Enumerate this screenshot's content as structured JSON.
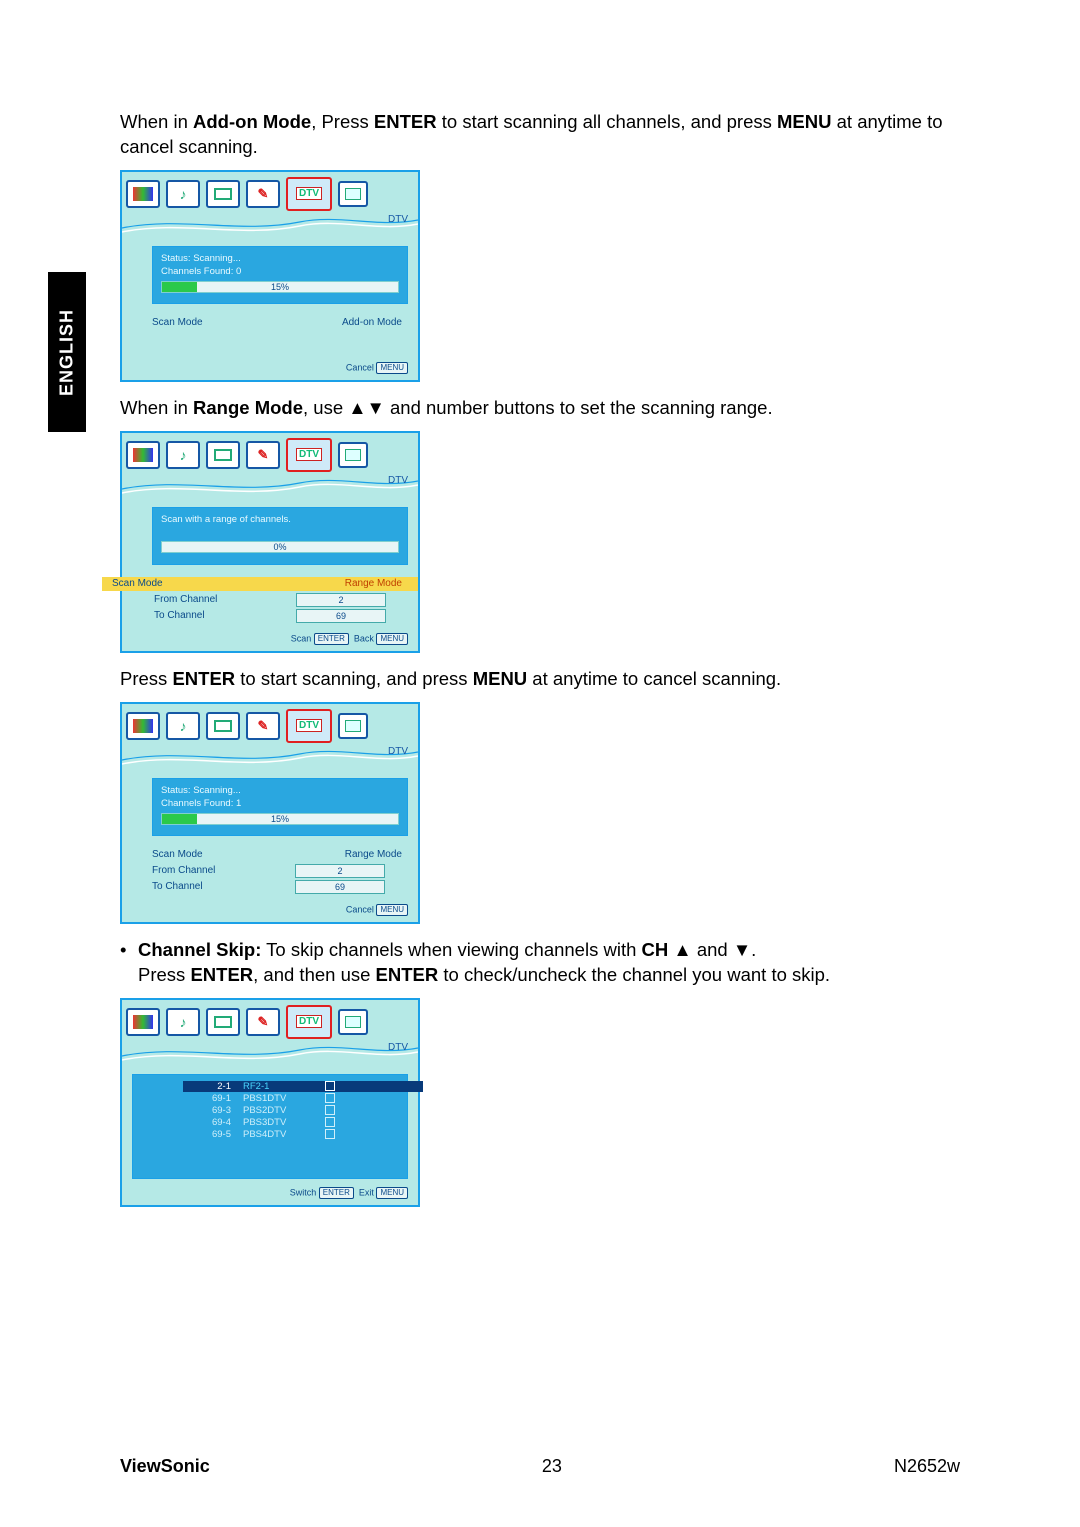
{
  "side_tab": "ENGLISH",
  "para1": {
    "pre": "When in ",
    "b1": "Add-on Mode",
    "mid1": ", Press ",
    "b2": "ENTER",
    "mid2": " to start scanning all channels, and press ",
    "b3": "MENU",
    "post": " at anytime to cancel scanning."
  },
  "para2": {
    "pre": "When in ",
    "b1": "Range Mode",
    "mid1": ", use ▲▼ and number buttons to set the scanning range."
  },
  "para3": {
    "pre": "Press ",
    "b1": "ENTER",
    "mid1": " to start scanning, and press ",
    "b2": "MENU",
    "post": " at anytime to cancel scanning."
  },
  "para4": {
    "b1": "Channel Skip:",
    "mid1": " To skip channels when viewing channels with ",
    "b2": "CH",
    "mid2": " ▲ and ▼.",
    "line2a": "Press ",
    "b3": "ENTER",
    "mid3": ", and then use ",
    "b4": "ENTER",
    "post": " to check/uncheck the channel you want to skip."
  },
  "dtv_label": "DTV",
  "iconbar": {
    "dtv_text": "DTV"
  },
  "box1": {
    "status": "Status: Scanning...",
    "found": "Channels Found: 0",
    "progress_pct": 15,
    "progress_label": "15%",
    "scan_mode_label": "Scan Mode",
    "scan_mode_value": "Add-on Mode",
    "cancel": "Cancel",
    "menu_key": "MENU"
  },
  "box2": {
    "heading": "Scan with a range of channels.",
    "progress_pct": 0,
    "progress_label": "0%",
    "scan_mode_label": "Scan Mode",
    "scan_mode_value": "Range Mode",
    "from_label": "From Channel",
    "from_value": "2",
    "to_label": "To Channel",
    "to_value": "69",
    "scan": "Scan",
    "enter_key": "ENTER",
    "back": "Back",
    "menu_key": "MENU"
  },
  "box3": {
    "status": "Status: Scanning...",
    "found": "Channels Found: 1",
    "progress_pct": 15,
    "progress_label": "15%",
    "scan_mode_label": "Scan Mode",
    "scan_mode_value": "Range Mode",
    "from_label": "From Channel",
    "from_value": "2",
    "to_label": "To Channel",
    "to_value": "69",
    "cancel": "Cancel",
    "menu_key": "MENU"
  },
  "box4": {
    "channels": [
      {
        "num": "2-1",
        "name": "RF2-1",
        "sel": true
      },
      {
        "num": "69-1",
        "name": "PBS1DTV",
        "sel": false
      },
      {
        "num": "69-3",
        "name": "PBS2DTV",
        "sel": false
      },
      {
        "num": "69-4",
        "name": "PBS3DTV",
        "sel": false
      },
      {
        "num": "69-5",
        "name": "PBS4DTV",
        "sel": false
      }
    ],
    "switch": "Switch",
    "enter_key": "ENTER",
    "exit": "Exit",
    "menu_key": "MENU"
  },
  "footer": {
    "brand": "ViewSonic",
    "page": "23",
    "model": "N2652w"
  },
  "colors": {
    "tv_border": "#1aa0e8",
    "tv_bg": "#b5e9e6",
    "panel_bg": "#2aa7e0",
    "highlight": "#f7d84b",
    "sel_row": "#083a7a"
  }
}
